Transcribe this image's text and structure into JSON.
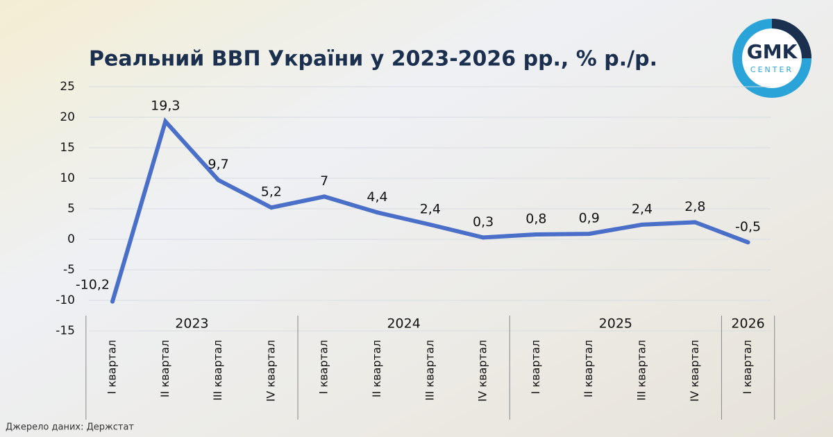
{
  "chart_data": {
    "type": "line",
    "title": "Реальний ВВП України у 2023-2026 рр., % р./р.",
    "source": "Джерело даних: Держстат",
    "logo": {
      "top": "GMK",
      "bottom": "CENTER"
    },
    "groups": [
      {
        "name": "2023",
        "categories": [
          "I квартал",
          "II квартал",
          "III квартал",
          "IV квартал"
        ]
      },
      {
        "name": "2024",
        "categories": [
          "I квартал",
          "II квартал",
          "III квартал",
          "IV квартал"
        ]
      },
      {
        "name": "2025",
        "categories": [
          "I квартал",
          "II квартал",
          "III квартал",
          "IV квартал"
        ]
      },
      {
        "name": "2026",
        "categories": [
          "I квартал"
        ]
      }
    ],
    "values": [
      -10.2,
      19.3,
      9.7,
      5.2,
      7,
      4.4,
      2.4,
      0.3,
      0.8,
      0.9,
      2.4,
      2.8,
      -0.5
    ],
    "value_labels": [
      "-10,2",
      "19,3",
      "9,7",
      "5,2",
      "7",
      "4,4",
      "2,4",
      "0,3",
      "0,8",
      "0,9",
      "2,4",
      "2,8",
      "-0,5"
    ],
    "color": "#4a6fc8",
    "ylim": [
      -15,
      25
    ],
    "yticks": [
      -15,
      -10,
      -5,
      0,
      5,
      10,
      15,
      20,
      25
    ],
    "grid": true
  }
}
